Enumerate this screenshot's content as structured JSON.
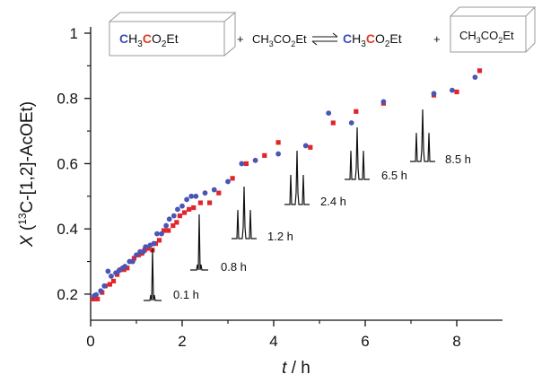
{
  "chart_data": {
    "type": "scatter",
    "xlabel": "t / h",
    "ylabel": "X (13C-[1,2]-AcOEt)",
    "xlim": [
      0,
      9
    ],
    "ylim": [
      0.12,
      1.0
    ],
    "x_ticks": [
      "0",
      "2",
      "4",
      "6",
      "8"
    ],
    "y_ticks": [
      "0.2",
      "0.4",
      "0.6",
      "0.8",
      "1"
    ],
    "grid": false,
    "colors": {
      "series_a": "#4a55b5",
      "series_b": "#e0262a",
      "axis": "#111111",
      "label_blue": "#3d4db7",
      "label_red": "#e53a1e"
    },
    "series": [
      {
        "marker": "circle",
        "x": [
          0.08,
          0.12,
          0.22,
          0.3,
          0.38,
          0.45,
          0.55,
          0.62,
          0.7,
          0.75,
          0.85,
          0.92,
          1.0,
          1.08,
          1.15,
          1.2,
          1.3,
          1.38,
          1.45,
          1.55,
          1.65,
          1.72,
          1.82,
          1.9,
          2.0,
          2.1,
          2.2,
          2.3,
          2.5,
          2.7,
          3.0,
          3.3,
          3.6,
          4.1,
          4.7,
          5.2,
          5.7,
          6.4,
          7.5,
          7.9,
          8.4
        ],
        "y": [
          0.195,
          0.198,
          0.21,
          0.225,
          0.27,
          0.255,
          0.265,
          0.272,
          0.28,
          0.285,
          0.3,
          0.3,
          0.32,
          0.33,
          0.33,
          0.345,
          0.35,
          0.355,
          0.385,
          0.385,
          0.41,
          0.43,
          0.44,
          0.46,
          0.47,
          0.49,
          0.5,
          0.5,
          0.51,
          0.52,
          0.545,
          0.6,
          0.61,
          0.63,
          0.655,
          0.755,
          0.725,
          0.79,
          0.815,
          0.825,
          0.865
        ]
      },
      {
        "marker": "square",
        "x": [
          0.05,
          0.15,
          0.25,
          0.32,
          0.42,
          0.5,
          0.58,
          0.65,
          0.73,
          0.8,
          0.88,
          0.95,
          1.05,
          1.12,
          1.18,
          1.25,
          1.35,
          1.42,
          1.5,
          1.6,
          1.7,
          1.8,
          1.88,
          1.95,
          2.05,
          2.15,
          2.25,
          2.4,
          2.6,
          2.8,
          3.1,
          3.4,
          3.8,
          4.1,
          4.8,
          5.3,
          5.8,
          6.4,
          7.5,
          8.0,
          8.5
        ],
        "y": [
          0.185,
          0.185,
          0.205,
          0.225,
          0.23,
          0.24,
          0.26,
          0.275,
          0.275,
          0.28,
          0.3,
          0.31,
          0.32,
          0.325,
          0.335,
          0.34,
          0.335,
          0.355,
          0.365,
          0.395,
          0.395,
          0.41,
          0.42,
          0.44,
          0.45,
          0.46,
          0.465,
          0.48,
          0.48,
          0.51,
          0.555,
          0.6,
          0.625,
          0.665,
          0.65,
          0.725,
          0.76,
          0.785,
          0.81,
          0.82,
          0.885
        ]
      }
    ],
    "annotations": [
      "0.1 h",
      "0.8 h",
      "1.2 h",
      "2.4 h",
      "6.5 h",
      "8.5 h"
    ],
    "equation": {
      "box1_parts": [
        "C",
        "H",
        "3",
        "C",
        "O",
        "2",
        "Et"
      ],
      "plus1": "+",
      "middle": "CH3CO2Et",
      "product_parts": [
        "C",
        "H",
        "3",
        "C",
        "O",
        "2",
        "Et"
      ],
      "plus2": "+",
      "box2": "CH3CO2Et"
    }
  }
}
